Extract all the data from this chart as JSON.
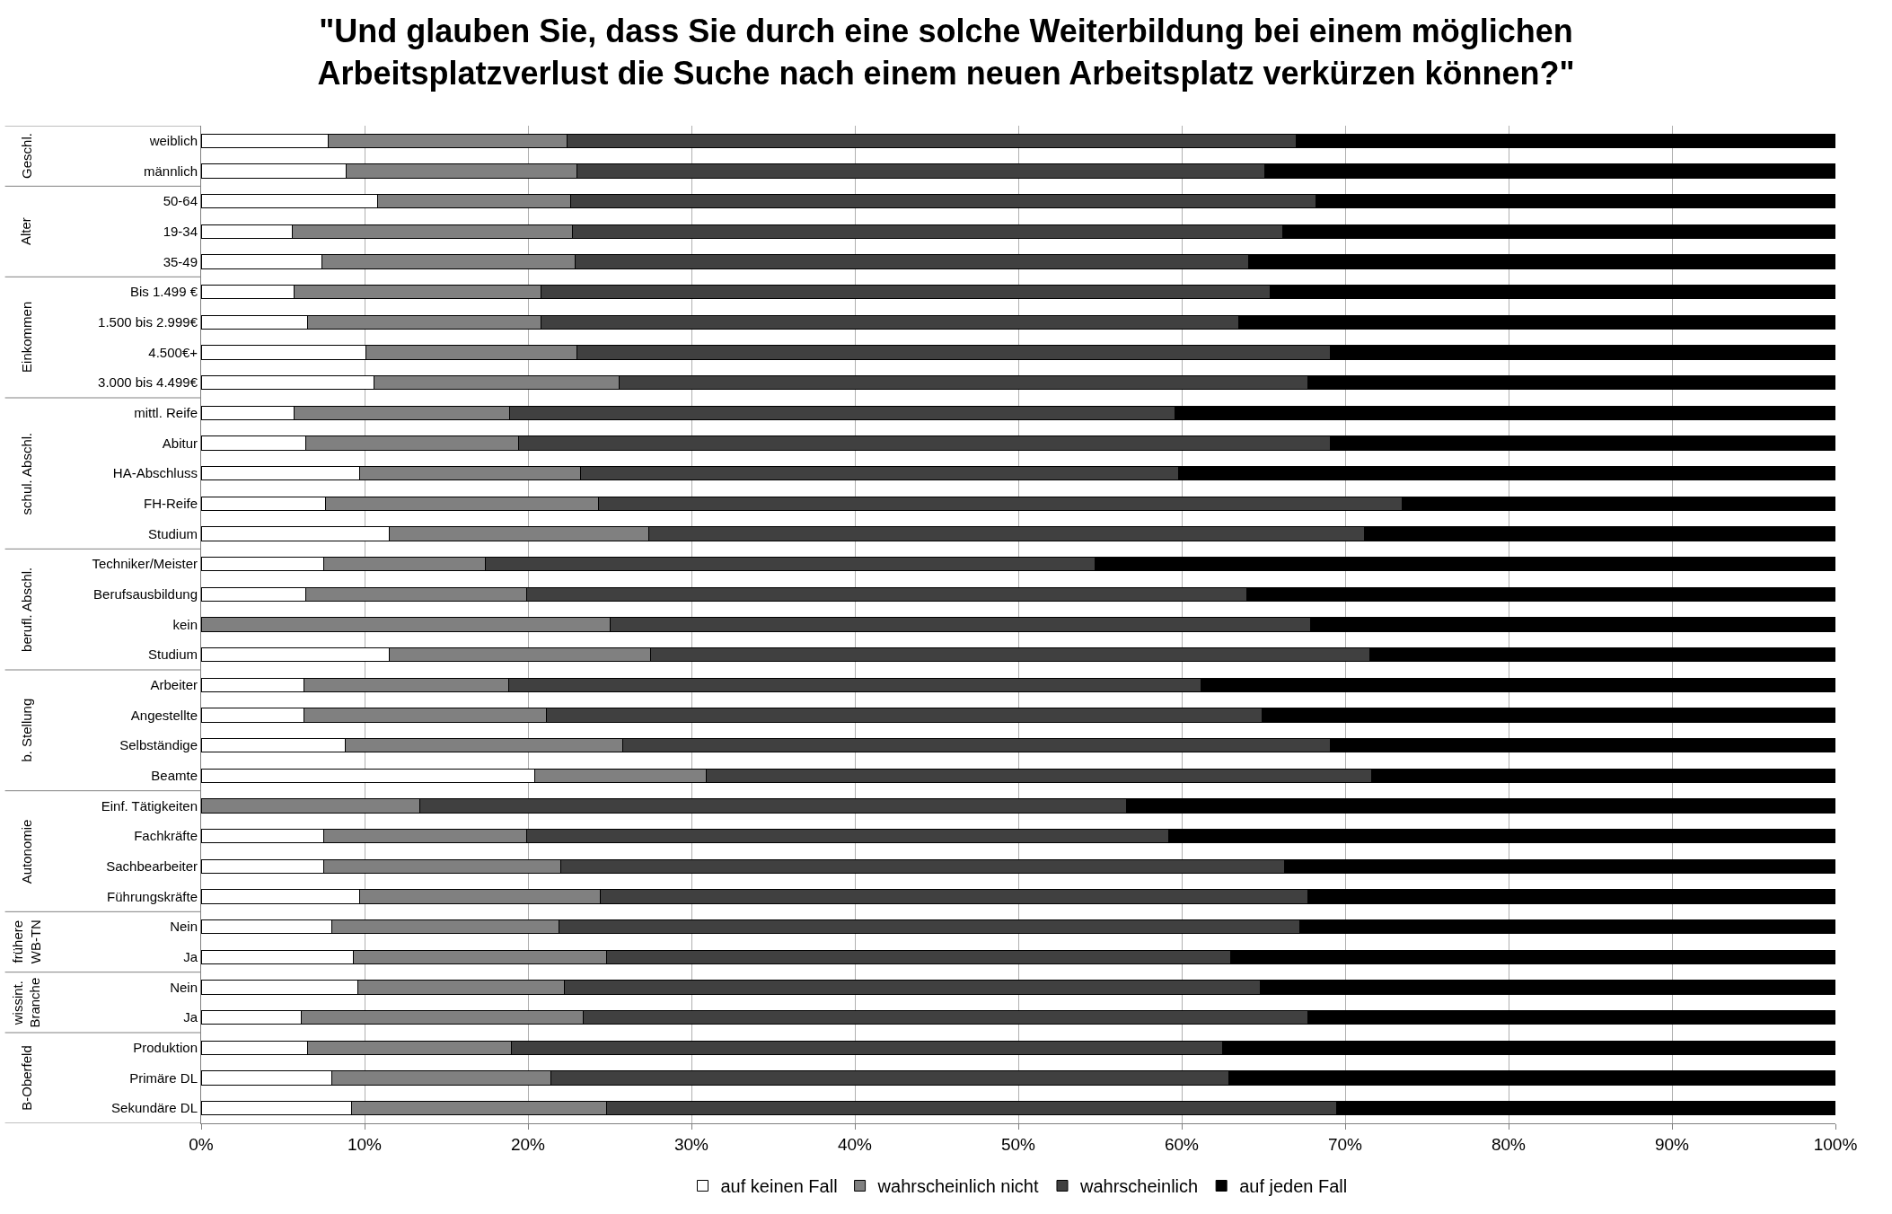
{
  "chart_data": {
    "type": "bar",
    "orientation": "horizontal",
    "stacked": true,
    "title": "\"Und glauben Sie, dass Sie durch eine solche Weiterbildung bei einem möglichen\nArbeitsplatzverlust die Suche nach einem neuen Arbeitsplatz verkürzen können?\"",
    "categories": [
      "weiblich",
      "männlich",
      "50-64",
      "19-34",
      "35-49",
      "Bis 1.499 €",
      "1.500 bis 2.999€",
      "4.500€+",
      "3.000 bis 4.499€",
      "mittl. Reife",
      "Abitur",
      "HA-Abschluss",
      "FH-Reife",
      "Studium",
      "Techniker/Meister",
      "Berufsausbildung",
      "kein",
      "Studium",
      "Arbeiter",
      "Angestellte",
      "Selbständige",
      "Beamte",
      "Einf. Tätigkeiten",
      "Fachkräfte",
      "Sachbearbeiter",
      "Führungskräfte",
      "Nein",
      "Ja",
      "Nein",
      "Ja",
      "Produktion",
      "Primäre DL",
      "Sekundäre DL"
    ],
    "series": [
      {
        "name": "auf keinen Fall",
        "color": "#ffffff",
        "values": [
          7.8,
          8.9,
          10.8,
          5.6,
          7.4,
          5.7,
          6.5,
          10.1,
          10.6,
          5.7,
          6.4,
          9.7,
          7.6,
          11.5,
          7.5,
          6.4,
          0,
          11.5,
          6.3,
          6.3,
          8.8,
          20.4,
          0,
          7.5,
          7.5,
          9.7,
          8.0,
          9.3,
          9.6,
          6.1,
          6.5,
          8.0,
          9.2
        ]
      },
      {
        "name": "wahrscheinlich nicht",
        "color": "#808080",
        "values": [
          14.6,
          14.1,
          11.8,
          17.1,
          15.5,
          15.1,
          14.3,
          12.9,
          15.0,
          13.2,
          13.0,
          13.5,
          16.7,
          15.9,
          9.9,
          13.5,
          25.0,
          16.0,
          12.5,
          14.8,
          17.0,
          10.5,
          13.4,
          12.4,
          14.5,
          14.7,
          13.9,
          15.5,
          12.6,
          17.3,
          12.5,
          13.4,
          15.6
        ]
      },
      {
        "name": "wahrscheinlich",
        "color": "#404040",
        "values": [
          44.6,
          42.1,
          45.6,
          43.5,
          41.2,
          44.6,
          42.7,
          46.1,
          42.1,
          40.7,
          49.7,
          36.6,
          49.2,
          43.8,
          37.3,
          44.1,
          42.9,
          44.0,
          42.4,
          43.8,
          43.3,
          40.7,
          43.2,
          39.3,
          44.3,
          43.3,
          45.3,
          38.2,
          42.6,
          44.3,
          43.5,
          41.5,
          44.7
        ]
      },
      {
        "name": "auf jeden Fall",
        "color": "#000000",
        "values": [
          33.0,
          34.9,
          31.8,
          33.8,
          35.9,
          34.6,
          36.5,
          30.9,
          32.3,
          40.4,
          30.9,
          40.2,
          26.5,
          28.8,
          45.3,
          36.0,
          32.1,
          28.5,
          38.8,
          35.1,
          30.9,
          28.4,
          43.4,
          40.8,
          33.7,
          32.3,
          32.8,
          37.0,
          35.2,
          32.3,
          37.5,
          37.1,
          30.5
        ]
      }
    ],
    "xlim": [
      0,
      100
    ],
    "xticks": [
      {
        "value": 0,
        "label": "0%"
      },
      {
        "value": 10,
        "label": "10%"
      },
      {
        "value": 20,
        "label": "20%"
      },
      {
        "value": 30,
        "label": "30%"
      },
      {
        "value": 40,
        "label": "40%"
      },
      {
        "value": 50,
        "label": "50%"
      },
      {
        "value": 60,
        "label": "60%"
      },
      {
        "value": 70,
        "label": "70%"
      },
      {
        "value": 80,
        "label": "80%"
      },
      {
        "value": 90,
        "label": "90%"
      },
      {
        "value": 100,
        "label": "100%"
      }
    ],
    "annotations": [
      "Geschl.",
      "Alter",
      "Einkommen",
      "schul. Abschl.",
      "berufl. Abschl.",
      "b. Stellung",
      "Autonomie",
      "frühere\nWB-TN",
      "wissint.\nBranche",
      "B-Oberfeld"
    ],
    "grid": "x",
    "legend": "bottom"
  }
}
